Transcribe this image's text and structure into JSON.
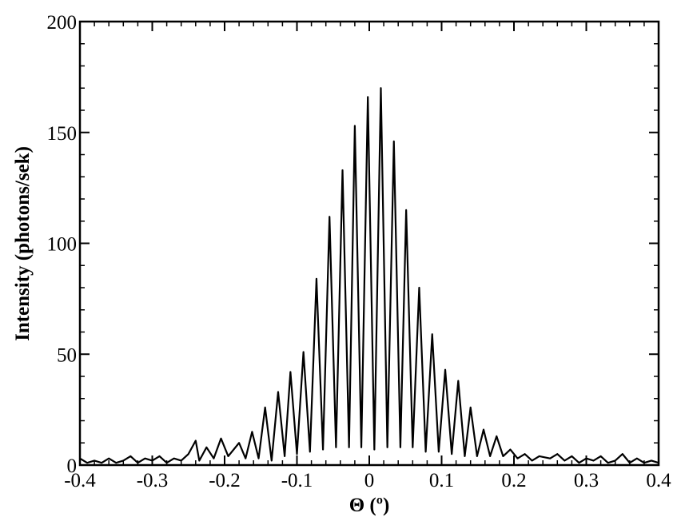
{
  "chart_data": {
    "type": "line",
    "xlabel": "Θ (º)",
    "ylabel": "Intensity (photons/sek)",
    "x": [
      -0.4,
      -0.39,
      -0.38,
      -0.37,
      -0.36,
      -0.35,
      -0.34,
      -0.33,
      -0.32,
      -0.31,
      -0.3,
      -0.29,
      -0.28,
      -0.27,
      -0.26,
      -0.25,
      -0.24,
      -0.235,
      -0.225,
      -0.215,
      -0.205,
      -0.195,
      -0.18,
      -0.171,
      -0.162,
      -0.153,
      -0.144,
      -0.135,
      -0.126,
      -0.117,
      -0.109,
      -0.1,
      -0.091,
      -0.082,
      -0.073,
      -0.064,
      -0.055,
      -0.046,
      -0.037,
      -0.028,
      -0.02,
      -0.011,
      -0.002,
      0.007,
      0.016,
      0.025,
      0.034,
      0.043,
      0.051,
      0.06,
      0.069,
      0.078,
      0.087,
      0.096,
      0.105,
      0.114,
      0.123,
      0.132,
      0.14,
      0.149,
      0.158,
      0.167,
      0.176,
      0.185,
      0.195,
      0.205,
      0.215,
      0.225,
      0.235,
      0.25,
      0.26,
      0.27,
      0.28,
      0.29,
      0.3,
      0.31,
      0.32,
      0.33,
      0.34,
      0.35,
      0.36,
      0.37,
      0.38,
      0.39,
      0.4
    ],
    "series": [
      {
        "color": "#000000",
        "values": [
          3,
          1,
          2,
          1,
          3,
          1,
          2,
          4,
          1,
          3,
          2,
          4,
          1,
          3,
          2,
          5,
          11,
          2,
          8,
          3,
          12,
          4,
          10,
          3,
          15,
          3,
          26,
          2,
          33,
          4,
          42,
          5,
          51,
          6,
          84,
          7,
          112,
          8,
          133,
          8,
          153,
          8,
          166,
          7,
          170,
          8,
          146,
          8,
          115,
          8,
          80,
          6,
          59,
          6,
          43,
          5,
          38,
          4,
          26,
          4,
          16,
          4,
          13,
          4,
          7,
          3,
          5,
          2,
          4,
          3,
          5,
          2,
          4,
          1,
          3,
          2,
          4,
          1,
          2,
          5,
          1,
          3,
          1,
          2,
          1
        ]
      }
    ],
    "xlim": [
      -0.4,
      0.4
    ],
    "xticks": [
      -0.4,
      -0.3,
      -0.2,
      -0.1,
      0,
      0.1,
      0.2,
      0.3,
      0.4
    ],
    "ylim": [
      0,
      200
    ],
    "yticks": [
      0,
      50,
      100,
      150,
      200
    ]
  }
}
